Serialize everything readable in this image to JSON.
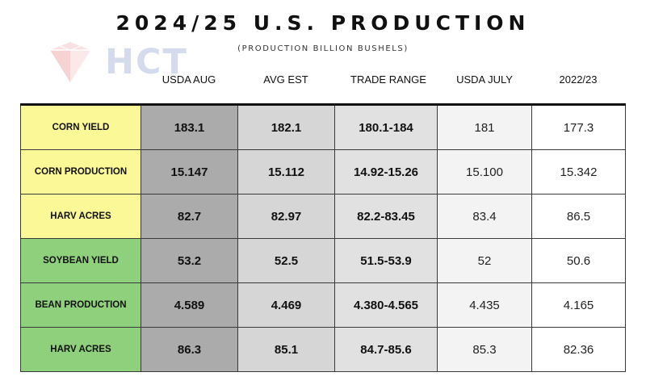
{
  "title": "2024/25 U.S. PRODUCTION",
  "subtitle": "(PRODUCTION BILLION BUSHELS)",
  "logo_text": "HCT",
  "columns": [
    "USDA AUG",
    "AVG EST",
    "TRADE RANGE",
    "USDA JULY",
    "2022/23"
  ],
  "rows": [
    {
      "label": "CORN YIELD",
      "group": "corn",
      "values": [
        "183.1",
        "182.1",
        "180.1-184",
        "181",
        "177.3"
      ]
    },
    {
      "label": "CORN PRODUCTION",
      "group": "corn",
      "values": [
        "15.147",
        "15.112",
        "14.92-15.26",
        "15.100",
        "15.342"
      ]
    },
    {
      "label": "HARV ACRES",
      "group": "corn",
      "values": [
        "82.7",
        "82.97",
        "82.2-83.45",
        "83.4",
        "86.5"
      ]
    },
    {
      "label": "SOYBEAN YIELD",
      "group": "soybean",
      "values": [
        "53.2",
        "52.5",
        "51.5-53.9",
        "52",
        "50.6"
      ]
    },
    {
      "label": "BEAN PRODUCTION",
      "group": "soybean",
      "values": [
        "4.589",
        "4.469",
        "4.380-4.565",
        "4.435",
        "4.165"
      ]
    },
    {
      "label": "HARV ACRES",
      "group": "soybean",
      "values": [
        "86.3",
        "85.1",
        "84.7-85.6",
        "85.3",
        "82.36"
      ]
    }
  ],
  "colors": {
    "corn_label_bg": "#fbf897",
    "soybean_label_bg": "#8ed07c",
    "usda_aug_bg": "#ababab",
    "avg_est_bg": "#d6d6d6",
    "trade_range_bg": "#e1e1e1",
    "usda_july_bg": "#f3f3f3",
    "prev_year_bg": "#ffffff"
  }
}
